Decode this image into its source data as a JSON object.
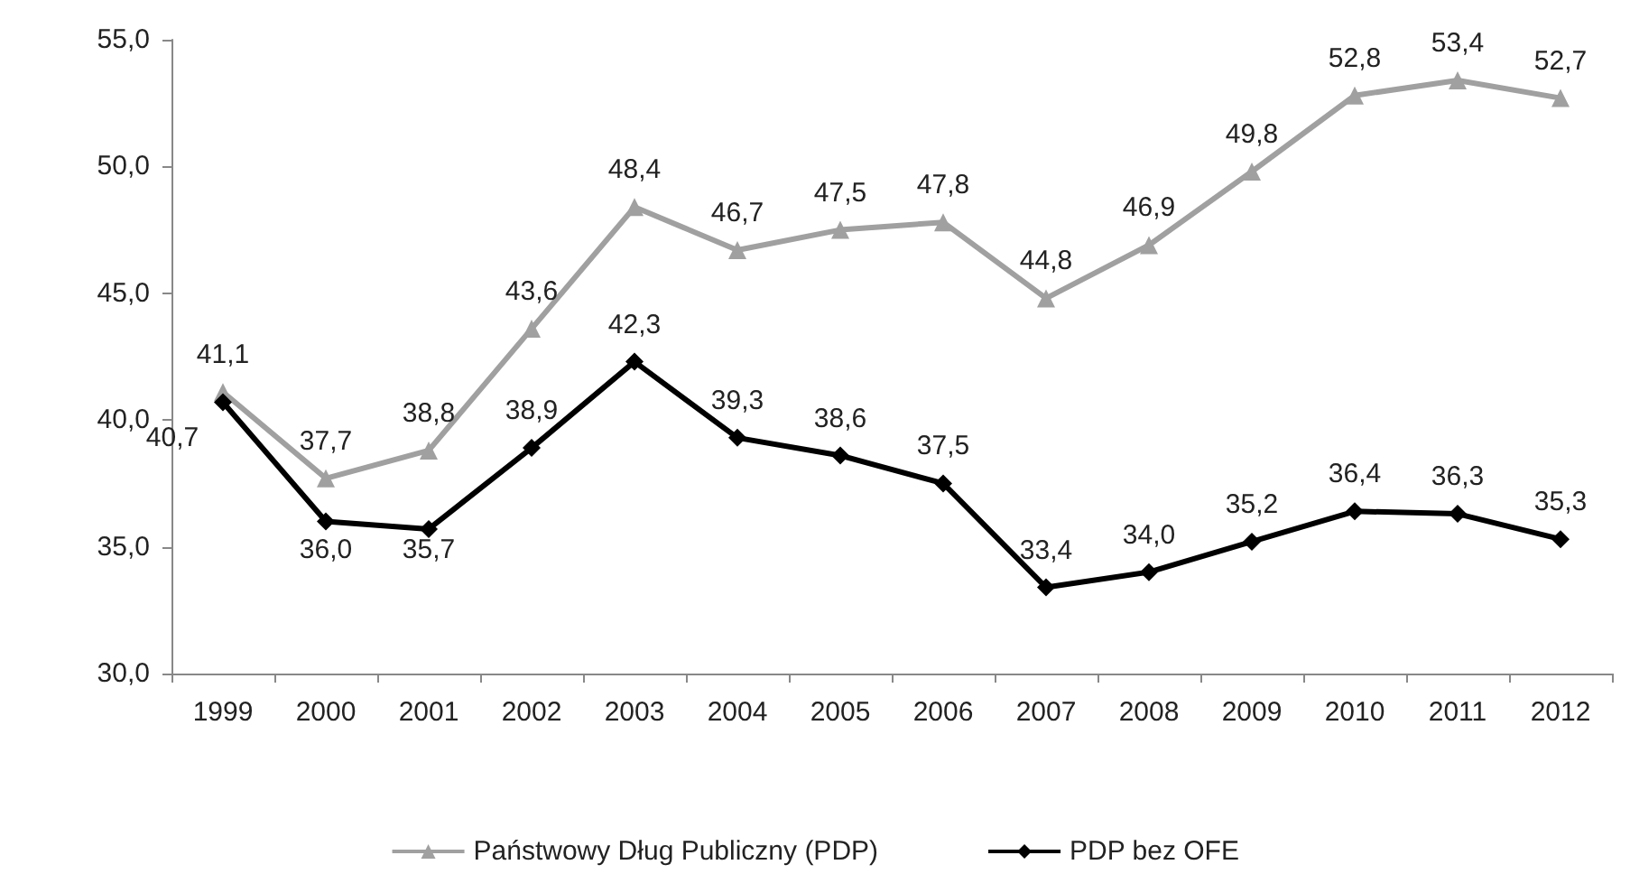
{
  "chart_data": {
    "type": "line",
    "categories": [
      "1999",
      "2000",
      "2001",
      "2002",
      "2003",
      "2004",
      "2005",
      "2006",
      "2007",
      "2008",
      "2009",
      "2010",
      "2011",
      "2012"
    ],
    "ylim": [
      30,
      55
    ],
    "yticks": [
      {
        "value": 30,
        "label": "30,0"
      },
      {
        "value": 35,
        "label": "35,0"
      },
      {
        "value": 40,
        "label": "40,0"
      },
      {
        "value": 45,
        "label": "45,0"
      },
      {
        "value": 50,
        "label": "50,0"
      },
      {
        "value": 55,
        "label": "55,0"
      }
    ],
    "grid": false,
    "legend": "bottom",
    "line_style": "solid",
    "series": [
      {
        "name": "Państwowy Dług Publiczny (PDP)",
        "color": "#a0a0a0",
        "marker": "triangle",
        "values": [
          41.1,
          37.7,
          38.8,
          43.6,
          48.4,
          46.7,
          47.5,
          47.8,
          44.8,
          46.9,
          49.8,
          52.8,
          53.4,
          52.7
        ],
        "value_labels": [
          "41,1",
          "37,7",
          "38,8",
          "43,6",
          "48,4",
          "46,7",
          "47,5",
          "47,8",
          "44,8",
          "46,9",
          "49,8",
          "52,8",
          "53,4",
          "52,7"
        ]
      },
      {
        "name": "PDP bez OFE",
        "color": "#000000",
        "marker": "diamond",
        "values": [
          40.7,
          36.0,
          35.7,
          38.9,
          42.3,
          39.3,
          38.6,
          37.5,
          33.4,
          34.0,
          35.2,
          36.4,
          36.3,
          35.3
        ],
        "value_labels": [
          "40,7",
          "36,0",
          "35,7",
          "38,9",
          "42,3",
          "39,3",
          "38,6",
          "37,5",
          "33,4",
          "34,0",
          "35,2",
          "36,4",
          "36,3",
          "35,3"
        ]
      }
    ]
  }
}
